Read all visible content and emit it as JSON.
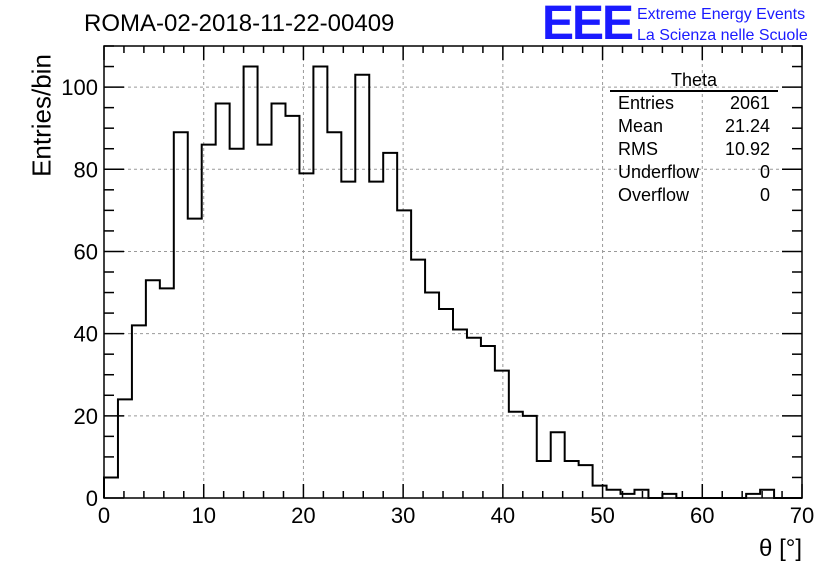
{
  "title": "ROMA-02-2018-11-22-00409",
  "logo": {
    "text": "EEE",
    "line1": "Extreme Energy Events",
    "line2": "La Scienza nelle Scuole",
    "color": "#1a1aff"
  },
  "stats_box": {
    "name": "Theta",
    "rows": [
      {
        "label": "Entries",
        "value": "2061"
      },
      {
        "label": "Mean",
        "value": "21.24"
      },
      {
        "label": "RMS",
        "value": "10.92"
      },
      {
        "label": "Underflow",
        "value": "0"
      },
      {
        "label": "Overflow",
        "value": "0"
      }
    ]
  },
  "chart_data": {
    "type": "bar",
    "histogram": true,
    "bin_width": 1.4,
    "x_range": [
      0,
      70
    ],
    "y_range": [
      0,
      110
    ],
    "xlabel": "θ [°]",
    "ylabel": "Entries/bin",
    "x_ticks": [
      0,
      10,
      20,
      30,
      40,
      50,
      60,
      70
    ],
    "y_ticks": [
      0,
      20,
      40,
      60,
      80,
      100
    ],
    "grid": true,
    "values": [
      5,
      24,
      42,
      53,
      51,
      89,
      68,
      86,
      96,
      85,
      105,
      86,
      96,
      93,
      79,
      105,
      89,
      77,
      103,
      77,
      84,
      70,
      58,
      50,
      46,
      41,
      39,
      37,
      31,
      21,
      20,
      9,
      16,
      9,
      8,
      3,
      2,
      1,
      2,
      0,
      1,
      0,
      0,
      0,
      0,
      0,
      1,
      2,
      0,
      0
    ]
  }
}
